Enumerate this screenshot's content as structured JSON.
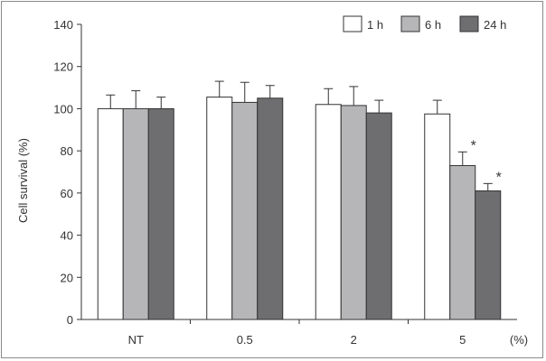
{
  "chart_data": {
    "type": "bar",
    "categories": [
      "NT",
      "0.5",
      "2",
      "5"
    ],
    "x_unit_label": "(%)",
    "ylabel": "Cell survival (%)",
    "xlabel": "",
    "title": "",
    "ylim": [
      0,
      140
    ],
    "yticks": [
      0,
      20,
      40,
      60,
      80,
      100,
      120,
      140
    ],
    "grid": false,
    "legend_position": "top-right",
    "series": [
      {
        "name": "1 h",
        "color": "#ffffff",
        "values": [
          100,
          105.5,
          102,
          97.5
        ],
        "errors": [
          6.5,
          7.5,
          7.5,
          6.5
        ]
      },
      {
        "name": "6 h",
        "color": "#b6b6b9",
        "values": [
          100,
          103,
          101.5,
          73
        ],
        "errors": [
          8.5,
          9.5,
          9,
          6.5
        ]
      },
      {
        "name": "24 h",
        "color": "#6e6e70",
        "values": [
          100,
          105,
          98,
          61
        ],
        "errors": [
          5.5,
          6,
          6,
          3.5
        ]
      }
    ],
    "annotations": [
      {
        "category": "5",
        "series": "6 h",
        "text": "*"
      },
      {
        "category": "5",
        "series": "24 h",
        "text": "*"
      }
    ]
  }
}
